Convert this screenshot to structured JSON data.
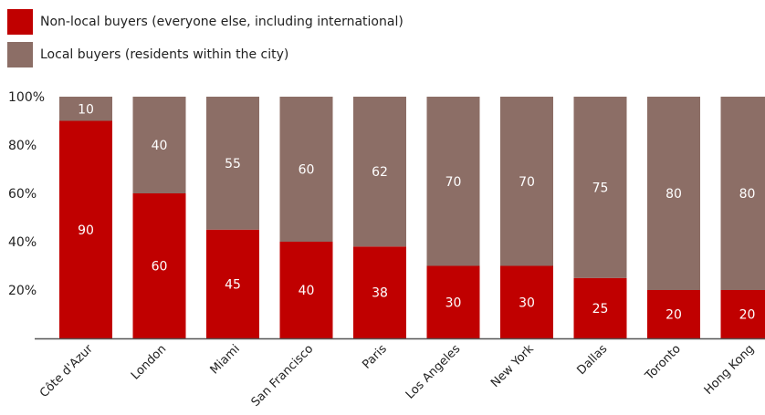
{
  "chart_data": {
    "type": "bar",
    "stacked": true,
    "categories": [
      "Côte d'Azur",
      "London",
      "Miami",
      "San Francisco",
      "Paris",
      "Los Angeles",
      "New York",
      "Dallas",
      "Toronto",
      "Hong Kong"
    ],
    "series": [
      {
        "name": "Non-local buyers (everyone else, including international)",
        "color": "#c00000",
        "values": [
          90,
          60,
          45,
          40,
          38,
          30,
          30,
          25,
          20,
          20
        ]
      },
      {
        "name": "Local buyers (residents within the city)",
        "color": "#8c6e66",
        "values": [
          10,
          40,
          55,
          60,
          62,
          70,
          70,
          75,
          80,
          80
        ]
      }
    ],
    "yticks": [
      "20%",
      "40%",
      "60%",
      "80%",
      "100%"
    ],
    "ylim": [
      0,
      100
    ],
    "legend_position": "top-left",
    "grid": false
  }
}
